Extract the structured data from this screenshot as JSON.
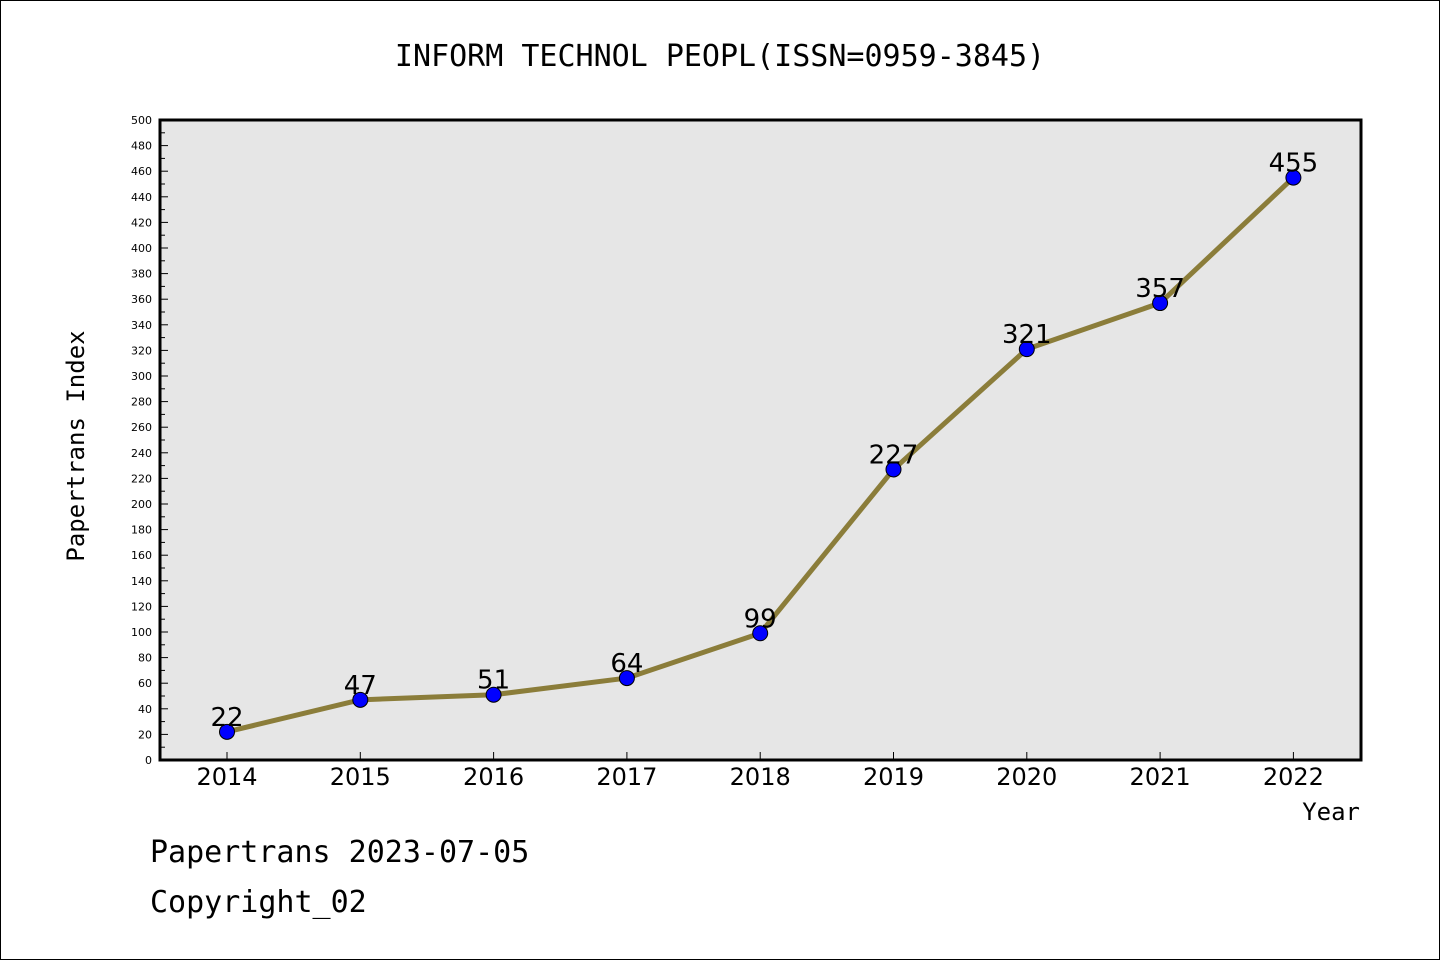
{
  "chart_data": {
    "type": "line",
    "title": "INFORM TECHNOL PEOPL(ISSN=0959-3845)",
    "xlabel": "Year",
    "ylabel": "Papertrans Index",
    "categories": [
      "2014",
      "2015",
      "2016",
      "2017",
      "2018",
      "2019",
      "2020",
      "2021",
      "2022"
    ],
    "series": [
      {
        "values": [
          22,
          47,
          51,
          64,
          99,
          227,
          321,
          357,
          455
        ]
      }
    ],
    "ylim": [
      0,
      500
    ],
    "yticks": [
      0,
      20,
      40,
      60,
      80,
      100,
      120,
      140,
      160,
      180,
      200,
      220,
      240,
      260,
      280,
      300,
      320,
      340,
      360,
      380,
      400,
      420,
      440,
      460,
      480,
      500
    ],
    "grid": false,
    "legend": "none",
    "colors": {
      "line": "#8b7d3a",
      "marker": "#0000ff",
      "plot_background": "#e6e6e6"
    }
  },
  "footer": {
    "line1": "Papertrans 2023-07-05",
    "line2": "Copyright_02"
  }
}
